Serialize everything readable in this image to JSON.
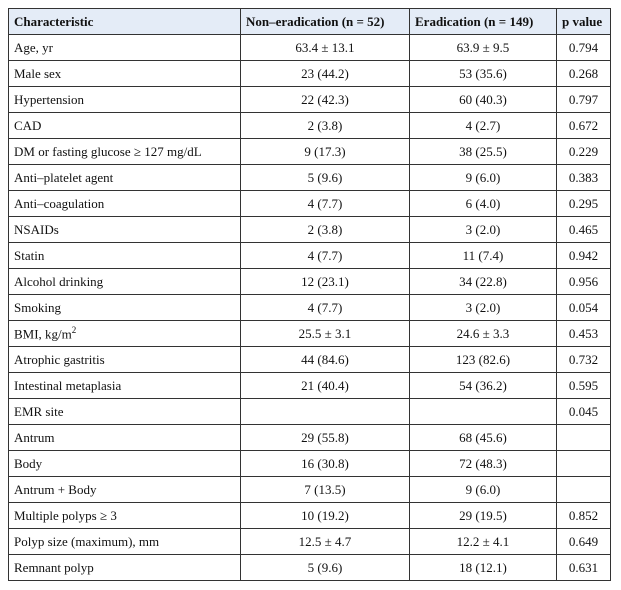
{
  "table": {
    "header": [
      "Characteristic",
      "Non–eradication (n = 52)",
      "Eradication (n = 149)",
      "p value"
    ],
    "rows": [
      [
        "Age, yr",
        "63.4 ± 13.1",
        "63.9 ± 9.5",
        "0.794"
      ],
      [
        "Male sex",
        "23 (44.2)",
        "53 (35.6)",
        "0.268"
      ],
      [
        "Hypertension",
        "22 (42.3)",
        "60 (40.3)",
        "0.797"
      ],
      [
        "CAD",
        "2 (3.8)",
        "4 (2.7)",
        "0.672"
      ],
      [
        "DM or fasting glucose ≥ 127 mg/dL",
        "9 (17.3)",
        "38 (25.5)",
        "0.229"
      ],
      [
        "Anti–platelet agent",
        "5 (9.6)",
        "9 (6.0)",
        "0.383"
      ],
      [
        "Anti–coagulation",
        "4 (7.7)",
        "6 (4.0)",
        "0.295"
      ],
      [
        "NSAIDs",
        "2 (3.8)",
        "3 (2.0)",
        "0.465"
      ],
      [
        "Statin",
        "4 (7.7)",
        "11 (7.4)",
        "0.942"
      ],
      [
        "Alcohol drinking",
        "12 (23.1)",
        "34 (22.8)",
        "0.956"
      ],
      [
        "Smoking",
        "4 (7.7)",
        "3 (2.0)",
        "0.054"
      ],
      [
        {
          "text": "BMI, kg/m",
          "sup": "2"
        },
        "25.5 ± 3.1",
        "24.6 ± 3.3",
        "0.453"
      ],
      [
        "Atrophic gastritis",
        "44 (84.6)",
        "123 (82.6)",
        "0.732"
      ],
      [
        "Intestinal metaplasia",
        "21 (40.4)",
        "54 (36.2)",
        "0.595"
      ],
      [
        "EMR site",
        null,
        null,
        "0.045"
      ],
      [
        "Antrum",
        "29 (55.8)",
        "68 (45.6)",
        null
      ],
      [
        "Body",
        "16 (30.8)",
        "72 (48.3)",
        null
      ],
      [
        "Antrum + Body",
        "7 (13.5)",
        "9 (6.0)",
        null
      ],
      [
        "Multiple polyps ≥ 3",
        "10 (19.2)",
        "29 (19.5)",
        "0.852"
      ],
      [
        "Polyp size (maximum), mm",
        "12.5 ± 4.7",
        "12.2 ± 4.1",
        "0.649"
      ],
      [
        "Remnant polyp",
        "5 (9.6)",
        "18 (12.1)",
        "0.631"
      ]
    ]
  }
}
